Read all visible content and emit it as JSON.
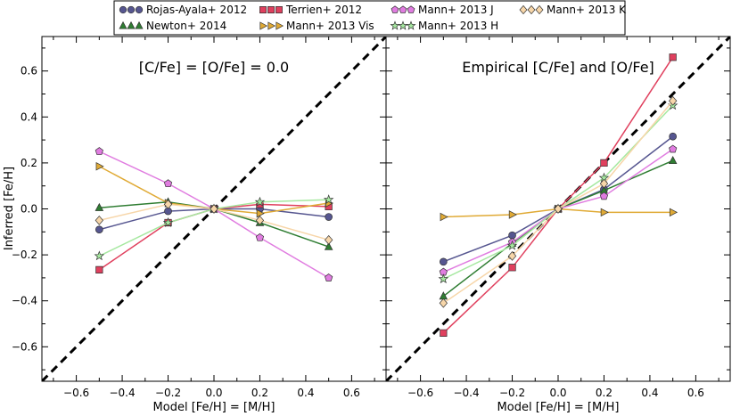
{
  "chart_data": {
    "type": "line",
    "xlabel": "Model [Fe/H] = [M/H]",
    "ylabel": "Inferred [Fe/H]",
    "xlim": [
      -0.75,
      0.75
    ],
    "ylim": [
      -0.75,
      0.75
    ],
    "xticks": [
      -0.6,
      -0.4,
      -0.2,
      0.0,
      0.2,
      0.4,
      0.6
    ],
    "yticks": [
      -0.6,
      -0.4,
      -0.2,
      0.0,
      0.2,
      0.4,
      0.6
    ],
    "xtick_labels": [
      "−0.6",
      "−0.4",
      "−0.2",
      "0.0",
      "0.2",
      "0.4",
      "0.6"
    ],
    "ytick_labels": [
      "−0.6",
      "−0.4",
      "−0.2",
      "0.0",
      "0.2",
      "0.4",
      "0.6"
    ],
    "reference_line": "one-to-one (dashed)",
    "legend_position": "top-center",
    "series_styles": [
      {
        "name": "Rojas-Ayala+ 2012",
        "marker": "circle",
        "color": "#565690",
        "fill": "#565690"
      },
      {
        "name": "Newton+ 2014",
        "marker": "triangle-up",
        "color": "#2f7d32",
        "fill": "#2f7d32"
      },
      {
        "name": "Terrien+ 2012",
        "marker": "square",
        "color": "#e0405e",
        "fill": "#e0405e"
      },
      {
        "name": "Mann+ 2013 Vis",
        "marker": "triangle-right",
        "color": "#e0aa35",
        "fill": "#e0aa35"
      },
      {
        "name": "Mann+ 2013 J",
        "marker": "pentagon",
        "color": "#e07ce0",
        "fill": "#e07ce0"
      },
      {
        "name": "Mann+ 2013 H",
        "marker": "star",
        "color": "#a6e8a0",
        "fill": "#a6e8a0"
      },
      {
        "name": "Mann+ 2013 K",
        "marker": "diamond",
        "color": "#f7d6a9",
        "fill": "#f7d6a9"
      }
    ],
    "panels": [
      {
        "title": "[C/Fe] = [O/Fe] = 0.0",
        "x": [
          -0.5,
          -0.2,
          0.0,
          0.2,
          0.5
        ],
        "series": [
          {
            "name": "Rojas-Ayala+ 2012",
            "values": [
              -0.09,
              -0.01,
              0.0,
              0.0,
              -0.035
            ]
          },
          {
            "name": "Newton+ 2014",
            "values": [
              0.005,
              0.03,
              0.0,
              -0.06,
              -0.165
            ]
          },
          {
            "name": "Terrien+ 2012",
            "values": [
              -0.265,
              -0.06,
              0.0,
              0.02,
              0.01
            ]
          },
          {
            "name": "Mann+ 2013 Vis",
            "values": [
              0.185,
              0.025,
              0.0,
              -0.02,
              0.025
            ]
          },
          {
            "name": "Mann+ 2013 J",
            "values": [
              0.25,
              0.11,
              0.0,
              -0.125,
              -0.3
            ]
          },
          {
            "name": "Mann+ 2013 H",
            "values": [
              -0.205,
              -0.06,
              0.0,
              0.03,
              0.04
            ]
          },
          {
            "name": "Mann+ 2013 K",
            "values": [
              -0.05,
              0.02,
              0.0,
              -0.05,
              -0.135
            ]
          }
        ]
      },
      {
        "title": "Empirical [C/Fe] and [O/Fe]",
        "x": [
          -0.5,
          -0.2,
          0.0,
          0.2,
          0.5
        ],
        "series": [
          {
            "name": "Rojas-Ayala+ 2012",
            "values": [
              -0.23,
              -0.115,
              0.0,
              0.085,
              0.315
            ]
          },
          {
            "name": "Newton+ 2014",
            "values": [
              -0.38,
              -0.15,
              0.0,
              0.08,
              0.21
            ]
          },
          {
            "name": "Terrien+ 2012",
            "values": [
              -0.54,
              -0.255,
              0.0,
              0.2,
              0.66
            ]
          },
          {
            "name": "Mann+ 2013 Vis",
            "values": [
              -0.035,
              -0.025,
              0.0,
              -0.015,
              -0.015
            ]
          },
          {
            "name": "Mann+ 2013 J",
            "values": [
              -0.275,
              -0.145,
              0.0,
              0.055,
              0.26
            ]
          },
          {
            "name": "Mann+ 2013 H",
            "values": [
              -0.305,
              -0.16,
              0.0,
              0.135,
              0.45
            ]
          },
          {
            "name": "Mann+ 2013 K",
            "values": [
              -0.41,
              -0.205,
              0.0,
              0.11,
              0.47
            ]
          }
        ]
      }
    ]
  }
}
